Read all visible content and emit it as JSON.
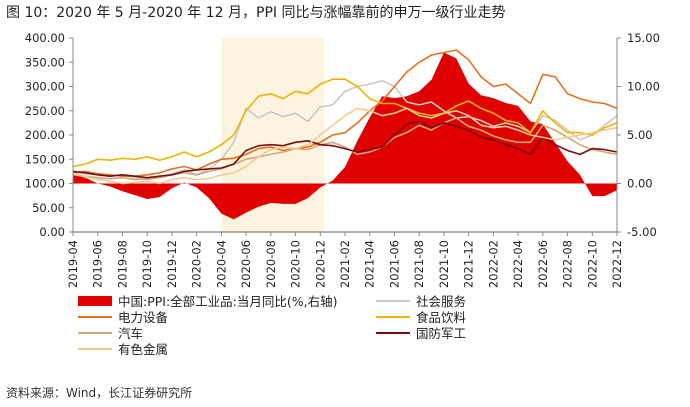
{
  "title": "图 10：2020 年 5 月-2020 年 12 月，PPI 同比与涨幅靠前的申万一级行业走势",
  "source": "资料来源：Wind，长江证券研究所",
  "chart_data": {
    "type": "line",
    "categories": [
      "2019-04",
      "2019-05",
      "2019-06",
      "2019-07",
      "2019-08",
      "2019-09",
      "2019-10",
      "2019-11",
      "2019-12",
      "2020-01",
      "2020-02",
      "2020-03",
      "2020-04",
      "2020-05",
      "2020-06",
      "2020-07",
      "2020-08",
      "2020-09",
      "2020-10",
      "2020-11",
      "2020-12",
      "2021-01",
      "2021-02",
      "2021-03",
      "2021-04",
      "2021-05",
      "2021-06",
      "2021-07",
      "2021-08",
      "2021-09",
      "2021-10",
      "2021-11",
      "2021-12",
      "2022-01",
      "2022-02",
      "2022-03",
      "2022-04",
      "2022-05",
      "2022-06",
      "2022-07",
      "2022-08",
      "2022-09",
      "2022-10",
      "2022-11",
      "2022-12"
    ],
    "x_tick_labels": [
      "2019-04",
      "2019-06",
      "2019-08",
      "2019-10",
      "2019-12",
      "2020-02",
      "2020-04",
      "2020-06",
      "2020-08",
      "2020-10",
      "2020-12",
      "2021-02",
      "2021-04",
      "2021-06",
      "2021-08",
      "2021-10",
      "2021-12",
      "2022-02",
      "2022-04",
      "2022-06",
      "2022-08",
      "2022-10",
      "2022-12"
    ],
    "highlight_range": [
      "2020-05",
      "2020-12"
    ],
    "y_left": {
      "min": 0,
      "max": 400,
      "ticks": [
        "0.00",
        "50.00",
        "100.00",
        "150.00",
        "200.00",
        "250.00",
        "300.00",
        "350.00",
        "400.00"
      ]
    },
    "y_right": {
      "min": -5,
      "max": 15,
      "ticks": [
        "-5.00",
        "0.00",
        "5.00",
        "10.00",
        "15.00"
      ]
    },
    "series": [
      {
        "name": "中国:PPI:全部工业品:当月同比(%,右轴)",
        "axis": "right",
        "kind": "area",
        "color": "#e00000",
        "values": [
          0.9,
          0.6,
          0.0,
          -0.3,
          -0.8,
          -1.2,
          -1.6,
          -1.4,
          -0.5,
          0.1,
          -0.4,
          -1.5,
          -3.1,
          -3.7,
          -3.0,
          -2.4,
          -2.0,
          -2.1,
          -2.1,
          -1.5,
          -0.4,
          0.3,
          1.7,
          4.4,
          6.8,
          9.0,
          8.8,
          9.0,
          9.5,
          10.7,
          13.5,
          12.9,
          10.3,
          9.1,
          8.8,
          8.3,
          8.0,
          6.4,
          6.1,
          4.2,
          2.3,
          0.9,
          -1.3,
          -1.3,
          -0.7
        ]
      },
      {
        "name": "社会服务",
        "axis": "left",
        "kind": "line",
        "color": "#c8c8c8",
        "values": [
          125,
          120,
          118,
          115,
          118,
          112,
          108,
          112,
          120,
          128,
          118,
          130,
          150,
          185,
          255,
          235,
          248,
          238,
          245,
          228,
          258,
          262,
          290,
          300,
          305,
          312,
          300,
          268,
          262,
          268,
          250,
          235,
          238,
          230,
          218,
          225,
          218,
          205,
          240,
          230,
          210,
          190,
          200,
          220,
          240
        ]
      },
      {
        "name": "电力设备",
        "axis": "left",
        "kind": "line",
        "color": "#e8701c",
        "values": [
          122,
          125,
          120,
          118,
          115,
          115,
          118,
          122,
          130,
          135,
          128,
          140,
          150,
          152,
          160,
          172,
          175,
          168,
          172,
          175,
          185,
          200,
          205,
          225,
          250,
          270,
          300,
          330,
          350,
          365,
          370,
          375,
          355,
          320,
          300,
          305,
          285,
          265,
          325,
          320,
          285,
          275,
          268,
          265,
          255
        ]
      },
      {
        "name": "食品饮料",
        "axis": "left",
        "kind": "line",
        "color": "#f0b400",
        "values": [
          135,
          140,
          150,
          148,
          152,
          150,
          155,
          148,
          155,
          165,
          155,
          165,
          180,
          200,
          250,
          280,
          285,
          275,
          290,
          285,
          305,
          315,
          315,
          300,
          275,
          265,
          265,
          255,
          245,
          240,
          245,
          260,
          270,
          255,
          245,
          230,
          225,
          205,
          250,
          225,
          205,
          205,
          200,
          215,
          225
        ]
      },
      {
        "name": "汽车",
        "axis": "left",
        "kind": "line",
        "color": "#d0a878",
        "values": [
          118,
          115,
          112,
          110,
          112,
          108,
          110,
          112,
          118,
          122,
          118,
          125,
          130,
          140,
          150,
          155,
          160,
          165,
          172,
          170,
          180,
          185,
          175,
          160,
          165,
          175,
          195,
          205,
          220,
          210,
          225,
          235,
          218,
          210,
          198,
          190,
          185,
          185,
          220,
          210,
          195,
          180,
          170,
          165,
          160
        ]
      },
      {
        "name": "国防军工",
        "axis": "left",
        "kind": "line",
        "color": "#7a0c12",
        "values": [
          125,
          122,
          118,
          115,
          118,
          115,
          112,
          115,
          118,
          125,
          128,
          130,
          132,
          140,
          168,
          178,
          180,
          178,
          185,
          188,
          180,
          178,
          172,
          165,
          170,
          175,
          200,
          222,
          228,
          215,
          225,
          218,
          210,
          195,
          190,
          180,
          172,
          160,
          195,
          180,
          168,
          160,
          172,
          170,
          165
        ]
      },
      {
        "name": "有色金属",
        "axis": "left",
        "kind": "line",
        "color": "#f5ca90",
        "values": [
          120,
          115,
          108,
          105,
          100,
          102,
          105,
          100,
          108,
          112,
          108,
          110,
          118,
          122,
          135,
          155,
          170,
          175,
          172,
          180,
          200,
          220,
          240,
          255,
          250,
          240,
          245,
          255,
          240,
          235,
          245,
          250,
          240,
          220,
          215,
          218,
          210,
          200,
          195,
          190,
          195,
          200,
          205,
          210,
          215
        ]
      }
    ],
    "legend_position": "bottom"
  }
}
